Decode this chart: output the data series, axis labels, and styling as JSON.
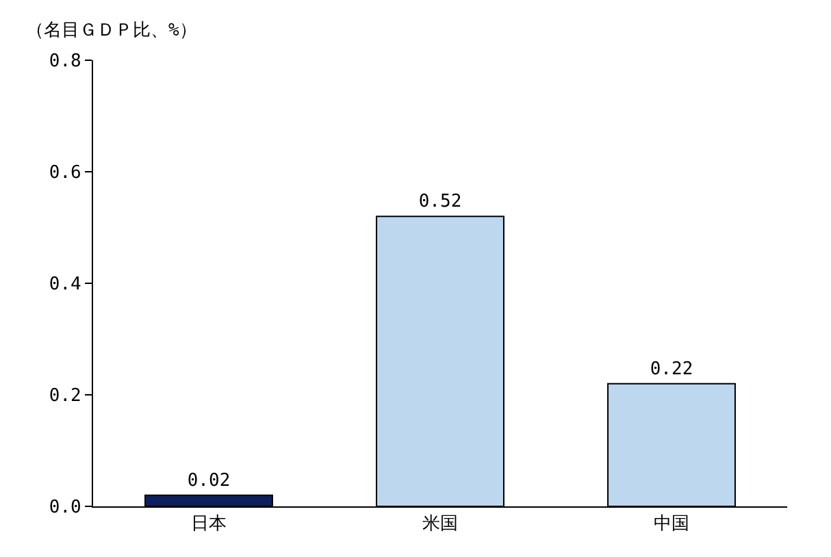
{
  "chart_data": {
    "type": "bar",
    "ylabel": "（名目ＧＤＰ比、%）",
    "categories": [
      "日本",
      "米国",
      "中国"
    ],
    "values": [
      0.02,
      0.52,
      0.22
    ],
    "colors": [
      "#0d1f5c",
      "#bdd7ee",
      "#bdd7ee"
    ],
    "ylim": [
      0,
      0.8
    ],
    "yticks": [
      {
        "value": 0,
        "label": "0.0"
      },
      {
        "value": 0.2,
        "label": "0.2"
      },
      {
        "value": 0.4,
        "label": "0.4"
      },
      {
        "value": 0.6,
        "label": "0.6"
      },
      {
        "value": 0.8,
        "label": "0.8"
      }
    ],
    "data_labels": true
  }
}
